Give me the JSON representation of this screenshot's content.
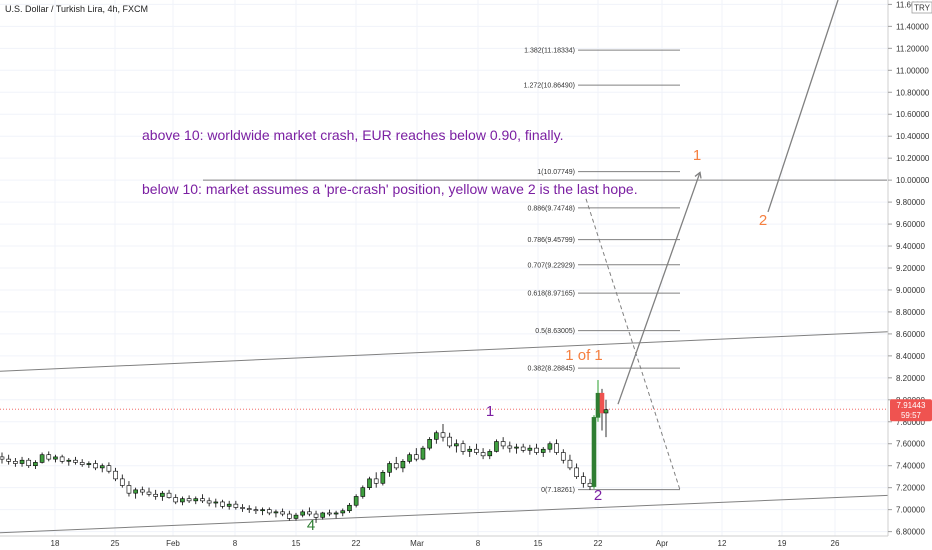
{
  "header": {
    "symbol_title": "U.S. Dollar / Turkish Lira, 4h, FXCM",
    "currency_badge": "TRY"
  },
  "colors": {
    "up": "#26a69a",
    "down": "#ef5350",
    "candle_up_fill": "#3f9e3f",
    "candle_down_fill": "#ffffff",
    "candle_wick": "#000000",
    "purple": "#7b1fa2",
    "orange": "#f57f3f",
    "green": "#2e7d32",
    "gray": "#808080",
    "price_line": "#ef5350",
    "badge_bg": "#ef5350"
  },
  "chart_data": {
    "type": "candlestick",
    "x_axis_labels": [
      "18",
      "25",
      "Feb",
      "8",
      "15",
      "22",
      "Mar",
      "8",
      "15",
      "22",
      "Apr",
      "12",
      "19",
      "26"
    ],
    "y_axis_labels": [
      "11.60000",
      "11.40000",
      "11.20000",
      "11.00000",
      "10.80000",
      "10.60000",
      "10.40000",
      "10.20000",
      "10.00000",
      "9.80000",
      "9.60000",
      "9.40000",
      "9.20000",
      "9.00000",
      "8.80000",
      "8.60000",
      "8.40000",
      "8.20000",
      "8.00000",
      "7.80000",
      "7.60000",
      "7.40000",
      "7.20000",
      "7.00000",
      "6.80000"
    ],
    "ylim": [
      6.76,
      11.64
    ],
    "last_price": "7.91443",
    "countdown": "59:57",
    "fib_levels": [
      {
        "label": "1.382(11.18334)",
        "value": 11.18334
      },
      {
        "label": "1.272(10.86490)",
        "value": 10.8649
      },
      {
        "label": "1(10.07749)",
        "value": 10.07749
      },
      {
        "label": "0.886(9.74748)",
        "value": 9.74748
      },
      {
        "label": "0.786(9.45799)",
        "value": 9.45799
      },
      {
        "label": "0.707(9.22929)",
        "value": 9.22929
      },
      {
        "label": "0.618(8.97165)",
        "value": 8.97165
      },
      {
        "label": "0.5(8.63005)",
        "value": 8.63005
      },
      {
        "label": "0.382(8.28845)",
        "value": 8.28845
      },
      {
        "label": "0(7.18261)",
        "value": 7.18261
      }
    ],
    "horizontal_line_value": 10.0,
    "annotations": [
      {
        "text": "above 10: worldwide market crash, EUR reaches below 0.90, finally.",
        "color": "purple"
      },
      {
        "text": "below 10: market assumes a 'pre-crash' position, yellow wave 2 is the last hope.",
        "color": "purple"
      }
    ],
    "wave_labels": [
      {
        "text": "1",
        "color": "purple",
        "t": 66,
        "v": 7.9
      },
      {
        "text": "2",
        "color": "purple",
        "t": 100,
        "v": 7.09
      },
      {
        "text": "4",
        "color": "green",
        "t": 47,
        "v": 6.87
      },
      {
        "text": "1 of 1",
        "color": "orange",
        "t": 100,
        "v": 8.4
      },
      {
        "text": "1",
        "color": "orange",
        "t": 107,
        "v": 10.15
      },
      {
        "text": "2",
        "color": "orange",
        "t": 118,
        "v": 9.62
      }
    ],
    "candles": [
      {
        "t": 0,
        "o": 7.48,
        "h": 7.52,
        "l": 7.42,
        "c": 7.46
      },
      {
        "t": 1,
        "o": 7.46,
        "h": 7.5,
        "l": 7.41,
        "c": 7.44
      },
      {
        "t": 2,
        "o": 7.44,
        "h": 7.47,
        "l": 7.39,
        "c": 7.42
      },
      {
        "t": 3,
        "o": 7.42,
        "h": 7.48,
        "l": 7.39,
        "c": 7.45
      },
      {
        "t": 4,
        "o": 7.45,
        "h": 7.47,
        "l": 7.38,
        "c": 7.4
      },
      {
        "t": 5,
        "o": 7.4,
        "h": 7.45,
        "l": 7.37,
        "c": 7.43
      },
      {
        "t": 6,
        "o": 7.43,
        "h": 7.52,
        "l": 7.42,
        "c": 7.5
      },
      {
        "t": 7,
        "o": 7.5,
        "h": 7.53,
        "l": 7.44,
        "c": 7.46
      },
      {
        "t": 8,
        "o": 7.46,
        "h": 7.5,
        "l": 7.43,
        "c": 7.48
      },
      {
        "t": 9,
        "o": 7.48,
        "h": 7.5,
        "l": 7.42,
        "c": 7.44
      },
      {
        "t": 10,
        "o": 7.44,
        "h": 7.47,
        "l": 7.4,
        "c": 7.45
      },
      {
        "t": 11,
        "o": 7.45,
        "h": 7.48,
        "l": 7.41,
        "c": 7.43
      },
      {
        "t": 12,
        "o": 7.43,
        "h": 7.46,
        "l": 7.39,
        "c": 7.41
      },
      {
        "t": 13,
        "o": 7.41,
        "h": 7.44,
        "l": 7.38,
        "c": 7.42
      },
      {
        "t": 14,
        "o": 7.42,
        "h": 7.45,
        "l": 7.36,
        "c": 7.38
      },
      {
        "t": 15,
        "o": 7.38,
        "h": 7.42,
        "l": 7.34,
        "c": 7.4
      },
      {
        "t": 16,
        "o": 7.4,
        "h": 7.43,
        "l": 7.33,
        "c": 7.35
      },
      {
        "t": 17,
        "o": 7.35,
        "h": 7.38,
        "l": 7.26,
        "c": 7.28
      },
      {
        "t": 18,
        "o": 7.28,
        "h": 7.32,
        "l": 7.2,
        "c": 7.22
      },
      {
        "t": 19,
        "o": 7.22,
        "h": 7.26,
        "l": 7.12,
        "c": 7.15
      },
      {
        "t": 20,
        "o": 7.15,
        "h": 7.2,
        "l": 7.1,
        "c": 7.18
      },
      {
        "t": 21,
        "o": 7.18,
        "h": 7.21,
        "l": 7.13,
        "c": 7.16
      },
      {
        "t": 22,
        "o": 7.16,
        "h": 7.2,
        "l": 7.12,
        "c": 7.14
      },
      {
        "t": 23,
        "o": 7.14,
        "h": 7.18,
        "l": 7.09,
        "c": 7.12
      },
      {
        "t": 24,
        "o": 7.12,
        "h": 7.17,
        "l": 7.08,
        "c": 7.15
      },
      {
        "t": 25,
        "o": 7.15,
        "h": 7.18,
        "l": 7.1,
        "c": 7.11
      },
      {
        "t": 26,
        "o": 7.11,
        "h": 7.14,
        "l": 7.05,
        "c": 7.07
      },
      {
        "t": 27,
        "o": 7.07,
        "h": 7.12,
        "l": 7.04,
        "c": 7.1
      },
      {
        "t": 28,
        "o": 7.1,
        "h": 7.13,
        "l": 7.06,
        "c": 7.08
      },
      {
        "t": 29,
        "o": 7.08,
        "h": 7.12,
        "l": 7.05,
        "c": 7.1
      },
      {
        "t": 30,
        "o": 7.1,
        "h": 7.14,
        "l": 7.06,
        "c": 7.08
      },
      {
        "t": 31,
        "o": 7.08,
        "h": 7.11,
        "l": 7.03,
        "c": 7.06
      },
      {
        "t": 32,
        "o": 7.06,
        "h": 7.1,
        "l": 7.02,
        "c": 7.07
      },
      {
        "t": 33,
        "o": 7.07,
        "h": 7.09,
        "l": 7.01,
        "c": 7.03
      },
      {
        "t": 34,
        "o": 7.03,
        "h": 7.08,
        "l": 7.0,
        "c": 7.05
      },
      {
        "t": 35,
        "o": 7.05,
        "h": 7.08,
        "l": 7.0,
        "c": 7.02
      },
      {
        "t": 36,
        "o": 7.02,
        "h": 7.05,
        "l": 6.98,
        "c": 7.01
      },
      {
        "t": 37,
        "o": 7.01,
        "h": 7.04,
        "l": 6.97,
        "c": 7.0
      },
      {
        "t": 38,
        "o": 7.0,
        "h": 7.03,
        "l": 6.96,
        "c": 6.99
      },
      {
        "t": 39,
        "o": 6.99,
        "h": 7.02,
        "l": 6.95,
        "c": 7.0
      },
      {
        "t": 40,
        "o": 7.0,
        "h": 7.02,
        "l": 6.95,
        "c": 6.97
      },
      {
        "t": 41,
        "o": 6.97,
        "h": 7.0,
        "l": 6.93,
        "c": 6.98
      },
      {
        "t": 42,
        "o": 6.98,
        "h": 7.01,
        "l": 6.94,
        "c": 6.96
      },
      {
        "t": 43,
        "o": 6.96,
        "h": 6.99,
        "l": 6.9,
        "c": 6.92
      },
      {
        "t": 44,
        "o": 6.92,
        "h": 6.97,
        "l": 6.9,
        "c": 6.95
      },
      {
        "t": 45,
        "o": 6.95,
        "h": 7.0,
        "l": 6.93,
        "c": 6.98
      },
      {
        "t": 46,
        "o": 6.98,
        "h": 7.02,
        "l": 6.94,
        "c": 6.96
      },
      {
        "t": 47,
        "o": 6.96,
        "h": 6.99,
        "l": 6.88,
        "c": 6.93
      },
      {
        "t": 48,
        "o": 6.93,
        "h": 6.98,
        "l": 6.91,
        "c": 6.97
      },
      {
        "t": 49,
        "o": 6.97,
        "h": 7.0,
        "l": 6.94,
        "c": 6.96
      },
      {
        "t": 50,
        "o": 6.96,
        "h": 6.99,
        "l": 6.92,
        "c": 6.97
      },
      {
        "t": 51,
        "o": 6.97,
        "h": 7.01,
        "l": 6.94,
        "c": 6.99
      },
      {
        "t": 52,
        "o": 6.99,
        "h": 7.06,
        "l": 6.97,
        "c": 7.04
      },
      {
        "t": 53,
        "o": 7.04,
        "h": 7.14,
        "l": 7.02,
        "c": 7.12
      },
      {
        "t": 54,
        "o": 7.12,
        "h": 7.22,
        "l": 7.1,
        "c": 7.2
      },
      {
        "t": 55,
        "o": 7.2,
        "h": 7.3,
        "l": 7.18,
        "c": 7.28
      },
      {
        "t": 56,
        "o": 7.28,
        "h": 7.34,
        "l": 7.2,
        "c": 7.24
      },
      {
        "t": 57,
        "o": 7.24,
        "h": 7.36,
        "l": 7.22,
        "c": 7.34
      },
      {
        "t": 58,
        "o": 7.34,
        "h": 7.44,
        "l": 7.3,
        "c": 7.42
      },
      {
        "t": 59,
        "o": 7.42,
        "h": 7.48,
        "l": 7.36,
        "c": 7.38
      },
      {
        "t": 60,
        "o": 7.38,
        "h": 7.46,
        "l": 7.34,
        "c": 7.44
      },
      {
        "t": 61,
        "o": 7.44,
        "h": 7.52,
        "l": 7.42,
        "c": 7.5
      },
      {
        "t": 62,
        "o": 7.5,
        "h": 7.56,
        "l": 7.44,
        "c": 7.46
      },
      {
        "t": 63,
        "o": 7.46,
        "h": 7.58,
        "l": 7.45,
        "c": 7.56
      },
      {
        "t": 64,
        "o": 7.56,
        "h": 7.66,
        "l": 7.54,
        "c": 7.64
      },
      {
        "t": 65,
        "o": 7.64,
        "h": 7.72,
        "l": 7.6,
        "c": 7.7
      },
      {
        "t": 66,
        "o": 7.7,
        "h": 7.78,
        "l": 7.62,
        "c": 7.66
      },
      {
        "t": 67,
        "o": 7.66,
        "h": 7.7,
        "l": 7.56,
        "c": 7.58
      },
      {
        "t": 68,
        "o": 7.58,
        "h": 7.64,
        "l": 7.52,
        "c": 7.6
      },
      {
        "t": 69,
        "o": 7.6,
        "h": 7.63,
        "l": 7.5,
        "c": 7.53
      },
      {
        "t": 70,
        "o": 7.53,
        "h": 7.58,
        "l": 7.48,
        "c": 7.55
      },
      {
        "t": 71,
        "o": 7.55,
        "h": 7.6,
        "l": 7.5,
        "c": 7.52
      },
      {
        "t": 72,
        "o": 7.52,
        "h": 7.56,
        "l": 7.46,
        "c": 7.49
      },
      {
        "t": 73,
        "o": 7.49,
        "h": 7.55,
        "l": 7.46,
        "c": 7.53
      },
      {
        "t": 74,
        "o": 7.53,
        "h": 7.64,
        "l": 7.52,
        "c": 7.62
      },
      {
        "t": 75,
        "o": 7.62,
        "h": 7.66,
        "l": 7.55,
        "c": 7.58
      },
      {
        "t": 76,
        "o": 7.58,
        "h": 7.62,
        "l": 7.52,
        "c": 7.56
      },
      {
        "t": 77,
        "o": 7.56,
        "h": 7.6,
        "l": 7.51,
        "c": 7.57
      },
      {
        "t": 78,
        "o": 7.57,
        "h": 7.6,
        "l": 7.52,
        "c": 7.54
      },
      {
        "t": 79,
        "o": 7.54,
        "h": 7.59,
        "l": 7.5,
        "c": 7.56
      },
      {
        "t": 80,
        "o": 7.56,
        "h": 7.6,
        "l": 7.5,
        "c": 7.52
      },
      {
        "t": 81,
        "o": 7.52,
        "h": 7.57,
        "l": 7.48,
        "c": 7.55
      },
      {
        "t": 82,
        "o": 7.55,
        "h": 7.62,
        "l": 7.52,
        "c": 7.6
      },
      {
        "t": 83,
        "o": 7.6,
        "h": 7.64,
        "l": 7.5,
        "c": 7.52
      },
      {
        "t": 84,
        "o": 7.52,
        "h": 7.55,
        "l": 7.42,
        "c": 7.45
      },
      {
        "t": 85,
        "o": 7.45,
        "h": 7.5,
        "l": 7.36,
        "c": 7.38
      },
      {
        "t": 86,
        "o": 7.38,
        "h": 7.42,
        "l": 7.28,
        "c": 7.3
      },
      {
        "t": 87,
        "o": 7.3,
        "h": 7.34,
        "l": 7.2,
        "c": 7.24
      },
      {
        "t": 88,
        "o": 7.24,
        "h": 7.28,
        "l": 7.18,
        "c": 7.21
      },
      {
        "t": 89,
        "o": 7.21,
        "h": 7.86,
        "l": 7.19,
        "c": 7.84
      },
      {
        "t": 90,
        "o": 7.84,
        "h": 8.18,
        "l": 7.8,
        "c": 8.06
      },
      {
        "t": 91,
        "o": 8.06,
        "h": 8.1,
        "l": 7.72,
        "c": 7.88
      },
      {
        "t": 92,
        "o": 7.88,
        "h": 8.0,
        "l": 7.66,
        "c": 7.91
      }
    ]
  }
}
